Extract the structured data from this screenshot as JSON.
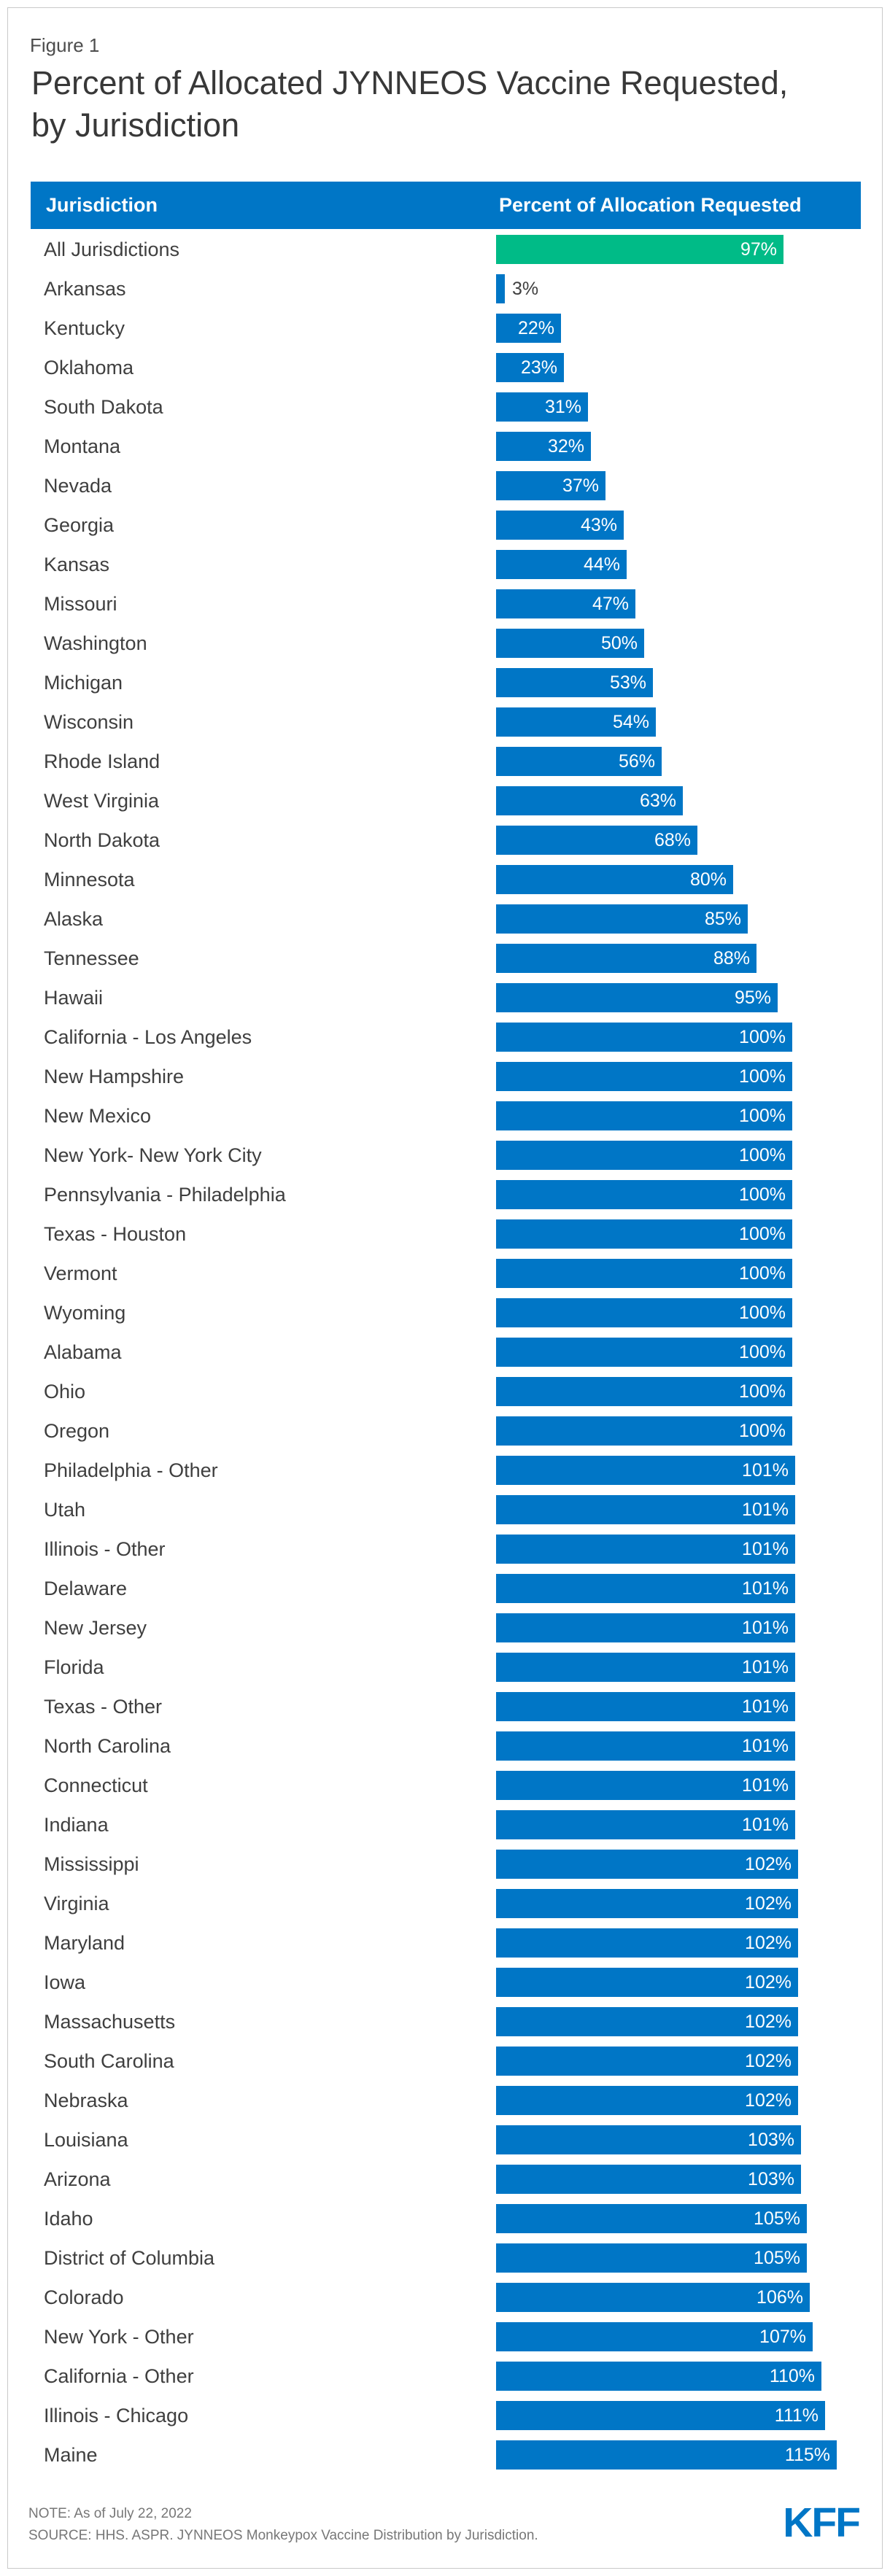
{
  "figure_label": "Figure 1",
  "title": "Percent of Allocated JYNNEOS Vaccine Requested, by Jurisdiction",
  "columns": {
    "jurisdiction": "Jurisdiction",
    "percent": "Percent of Allocation Requested"
  },
  "note": "NOTE: As of July 22, 2022",
  "source": "SOURCE: HHS. ASPR. JYNNEOS Monkeypox Vaccine Distribution by Jurisdiction.",
  "logo_text": "KFF",
  "colors": {
    "bar_blue": "#0076C6",
    "bar_green": "#00BB87",
    "header_bg": "#0076C6",
    "logo_blue": "#0076C6"
  },
  "chart_data": {
    "type": "bar",
    "orientation": "horizontal",
    "value_suffix": "%",
    "xlim": [
      0,
      115
    ],
    "series_label": "Percent of Allocation Requested",
    "highlight": {
      "index": 0,
      "color": "#00BB87"
    },
    "rows": [
      {
        "label": "All Jurisdictions",
        "value": 97
      },
      {
        "label": "Arkansas",
        "value": 3
      },
      {
        "label": "Kentucky",
        "value": 22
      },
      {
        "label": "Oklahoma",
        "value": 23
      },
      {
        "label": "South Dakota",
        "value": 31
      },
      {
        "label": "Montana",
        "value": 32
      },
      {
        "label": "Nevada",
        "value": 37
      },
      {
        "label": "Georgia",
        "value": 43
      },
      {
        "label": "Kansas",
        "value": 44
      },
      {
        "label": "Missouri",
        "value": 47
      },
      {
        "label": "Washington",
        "value": 50
      },
      {
        "label": "Michigan",
        "value": 53
      },
      {
        "label": "Wisconsin",
        "value": 54
      },
      {
        "label": "Rhode Island",
        "value": 56
      },
      {
        "label": "West Virginia",
        "value": 63
      },
      {
        "label": "North Dakota",
        "value": 68
      },
      {
        "label": "Minnesota",
        "value": 80
      },
      {
        "label": "Alaska",
        "value": 85
      },
      {
        "label": "Tennessee",
        "value": 88
      },
      {
        "label": "Hawaii",
        "value": 95
      },
      {
        "label": "California - Los Angeles",
        "value": 100
      },
      {
        "label": "New Hampshire",
        "value": 100
      },
      {
        "label": "New Mexico",
        "value": 100
      },
      {
        "label": "New York- New York City",
        "value": 100
      },
      {
        "label": "Pennsylvania - Philadelphia",
        "value": 100
      },
      {
        "label": "Texas - Houston",
        "value": 100
      },
      {
        "label": "Vermont",
        "value": 100
      },
      {
        "label": "Wyoming",
        "value": 100
      },
      {
        "label": "Alabama",
        "value": 100
      },
      {
        "label": "Ohio",
        "value": 100
      },
      {
        "label": "Oregon",
        "value": 100
      },
      {
        "label": "Philadelphia - Other",
        "value": 101
      },
      {
        "label": "Utah",
        "value": 101
      },
      {
        "label": "Illinois - Other",
        "value": 101
      },
      {
        "label": "Delaware",
        "value": 101
      },
      {
        "label": "New Jersey",
        "value": 101
      },
      {
        "label": "Florida",
        "value": 101
      },
      {
        "label": "Texas - Other",
        "value": 101
      },
      {
        "label": "North Carolina",
        "value": 101
      },
      {
        "label": "Connecticut",
        "value": 101
      },
      {
        "label": "Indiana",
        "value": 101
      },
      {
        "label": "Mississippi",
        "value": 102
      },
      {
        "label": "Virginia",
        "value": 102
      },
      {
        "label": "Maryland",
        "value": 102
      },
      {
        "label": "Iowa",
        "value": 102
      },
      {
        "label": "Massachusetts",
        "value": 102
      },
      {
        "label": "South Carolina",
        "value": 102
      },
      {
        "label": "Nebraska",
        "value": 102
      },
      {
        "label": "Louisiana",
        "value": 103
      },
      {
        "label": "Arizona",
        "value": 103
      },
      {
        "label": "Idaho",
        "value": 105
      },
      {
        "label": "District of Columbia",
        "value": 105
      },
      {
        "label": "Colorado",
        "value": 106
      },
      {
        "label": "New York - Other",
        "value": 107
      },
      {
        "label": "California - Other",
        "value": 110
      },
      {
        "label": "Illinois - Chicago",
        "value": 111
      },
      {
        "label": "Maine",
        "value": 115
      }
    ]
  }
}
